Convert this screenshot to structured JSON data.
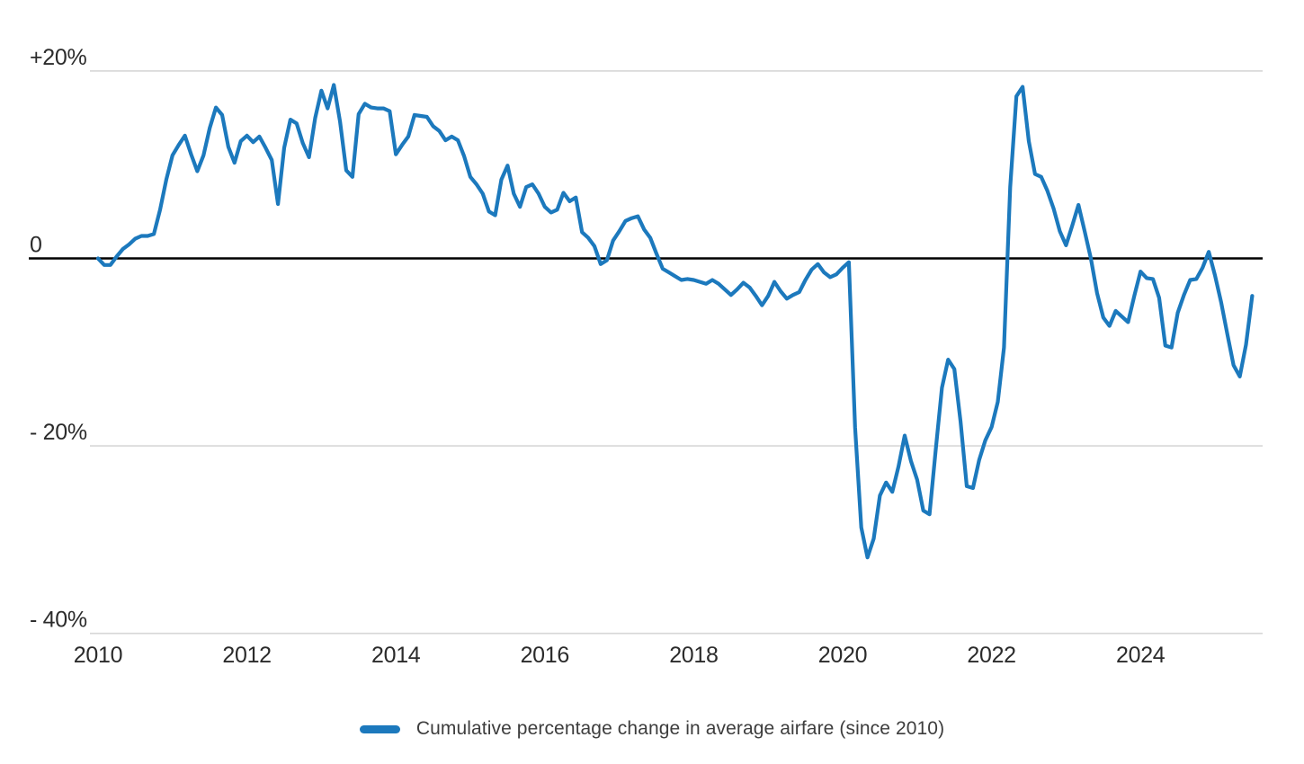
{
  "chart_data": {
    "type": "line",
    "title": "",
    "unit": "%",
    "frequency": "monthly",
    "x_start": "2010-01",
    "x_end": "2025-07",
    "grid": "horizontal-only",
    "legend_position": "bottom-center",
    "ylim": [
      -40,
      20
    ],
    "y_ticks": [
      {
        "label": "+20%",
        "value": 20
      },
      {
        "label": "0",
        "value": 0
      },
      {
        "label": "- 20%",
        "value": -20
      },
      {
        "label": "- 40%",
        "value": -40
      }
    ],
    "x_ticks": [
      {
        "label": "2010",
        "month_index": 0
      },
      {
        "label": "2012",
        "month_index": 24
      },
      {
        "label": "2014",
        "month_index": 48
      },
      {
        "label": "2016",
        "month_index": 72
      },
      {
        "label": "2018",
        "month_index": 96
      },
      {
        "label": "2020",
        "month_index": 120
      },
      {
        "label": "2022",
        "month_index": 144
      },
      {
        "label": "2024",
        "month_index": 168
      }
    ],
    "series": [
      {
        "name": "Cumulative percentage change in average airfare (since 2010)",
        "color": "#1c79bd",
        "values": [
          0.0,
          -0.7,
          -0.7,
          0.2,
          1.0,
          1.5,
          2.1,
          2.4,
          2.4,
          2.6,
          5.2,
          8.4,
          11.0,
          12.1,
          13.1,
          11.1,
          9.3,
          11.0,
          13.9,
          16.1,
          15.3,
          11.9,
          10.2,
          12.5,
          13.1,
          12.4,
          13.0,
          11.8,
          10.5,
          5.8,
          11.8,
          14.8,
          14.4,
          12.3,
          10.8,
          15.0,
          17.9,
          16.0,
          18.5,
          14.6,
          9.4,
          8.7,
          15.4,
          16.5,
          16.1,
          16.0,
          16.0,
          15.7,
          11.1,
          12.1,
          13.0,
          15.3,
          15.2,
          15.1,
          14.1,
          13.6,
          12.6,
          13.0,
          12.6,
          10.9,
          8.7,
          7.9,
          6.9,
          5.0,
          4.6,
          8.4,
          9.9,
          6.9,
          5.5,
          7.6,
          7.9,
          6.9,
          5.5,
          4.9,
          5.2,
          7.0,
          6.1,
          6.5,
          2.8,
          2.2,
          1.3,
          -0.6,
          -0.2,
          1.9,
          2.9,
          4.0,
          4.3,
          4.5,
          3.1,
          2.2,
          0.5,
          -1.1,
          -1.5,
          -1.9,
          -2.3,
          -2.2,
          -2.3,
          -2.5,
          -2.7,
          -2.3,
          -2.7,
          -3.3,
          -3.9,
          -3.3,
          -2.6,
          -3.1,
          -4.0,
          -5.0,
          -4.0,
          -2.5,
          -3.5,
          -4.3,
          -3.9,
          -3.6,
          -2.3,
          -1.2,
          -0.6,
          -1.5,
          -2.0,
          -1.7,
          -1.0,
          -0.4,
          -18.0,
          -28.7,
          -31.9,
          -29.9,
          -25.3,
          -23.9,
          -24.9,
          -22.2,
          -18.9,
          -21.6,
          -23.6,
          -26.9,
          -27.3,
          -20.4,
          -13.8,
          -10.8,
          -11.8,
          -17.4,
          -24.3,
          -24.5,
          -21.5,
          -19.4,
          -18.0,
          -15.3,
          -9.5,
          7.6,
          17.3,
          18.3,
          12.5,
          9.0,
          8.7,
          7.2,
          5.3,
          2.9,
          1.4,
          3.5,
          5.7,
          2.9,
          0.0,
          -3.7,
          -6.3,
          -7.2,
          -5.6,
          -6.2,
          -6.8,
          -4.0,
          -1.4,
          -2.1,
          -2.2,
          -4.2,
          -9.3,
          -9.5,
          -5.8,
          -3.9,
          -2.3,
          -2.2,
          -1.0,
          0.7,
          -1.8,
          -4.7,
          -8.1,
          -11.4,
          -12.6,
          -9.2,
          -4.0
        ]
      }
    ],
    "colors": {
      "line": "#1c79bd",
      "zero_line": "#000000",
      "gridline": "#d7d7d7",
      "axis_text": "#2b2b2b",
      "legend_text": "#3d3d3d",
      "background": "#ffffff"
    }
  },
  "legend": {
    "label": "Cumulative percentage change in average airfare (since 2010)"
  }
}
